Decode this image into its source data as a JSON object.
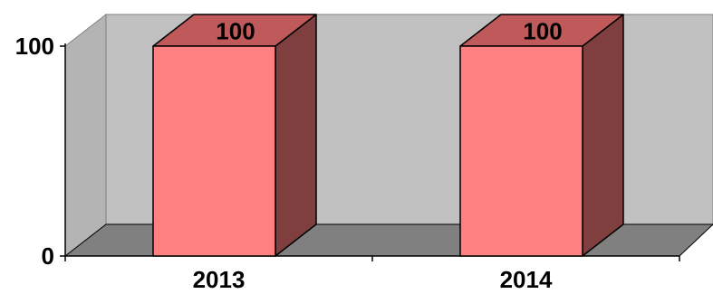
{
  "chart_data": {
    "type": "bar",
    "style": "3d",
    "categories": [
      "2013",
      "2014"
    ],
    "values": [
      100,
      100
    ],
    "data_labels": [
      "100",
      "100"
    ],
    "y_ticks": [
      "0",
      "100"
    ],
    "ylim": [
      0,
      100
    ],
    "grid": false,
    "legend": "none",
    "colors": {
      "bar_front": "#ff8080",
      "bar_top": "#c05a5a",
      "bar_side": "#7f3f3f",
      "wall_back": "#c0c0c0",
      "wall_side": "#b4b4b4",
      "floor": "#808080"
    }
  }
}
